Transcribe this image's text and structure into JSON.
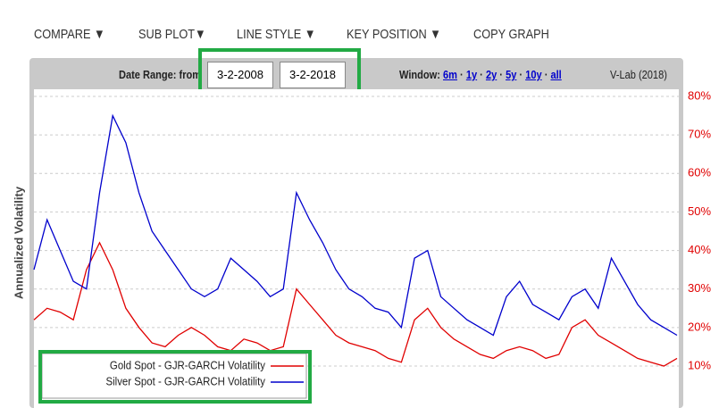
{
  "toolbar": [
    "COMPARE ▼",
    "SUB PLOT▼",
    "LINE STYLE ▼",
    "KEY POSITION ▼",
    "COPY GRAPH"
  ],
  "header": {
    "date_label": "Date Range: from",
    "date_from": "3-2-2008",
    "date_to": "3-2-2018",
    "window_label": "Window:",
    "window_links": [
      "6m",
      "1y",
      "2y",
      "5y",
      "10y",
      "all"
    ],
    "source": "V-Lab (2018)"
  },
  "chart": {
    "type": "line",
    "ylabel": "Annualized Volatility",
    "ylim": [
      1,
      82
    ],
    "yticks": [
      {
        "value": 10,
        "label": "10%"
      },
      {
        "value": 20,
        "label": "20%"
      },
      {
        "value": 30,
        "label": "30%"
      },
      {
        "value": 40,
        "label": "40%"
      },
      {
        "value": 50,
        "label": "50%"
      },
      {
        "value": 60,
        "label": "60%"
      },
      {
        "value": 70,
        "label": "70%"
      },
      {
        "value": 80,
        "label": "80%"
      }
    ],
    "grid": true,
    "series": [
      {
        "name": "Gold Spot - GJR-GARCH Volatility",
        "color": "#e00000",
        "values": [
          22,
          25,
          24,
          22,
          35,
          42,
          35,
          25,
          20,
          16,
          15,
          18,
          20,
          18,
          15,
          14,
          17,
          16,
          14,
          15,
          30,
          26,
          22,
          18,
          16,
          15,
          14,
          12,
          11,
          22,
          25,
          20,
          17,
          15,
          13,
          12,
          14,
          15,
          14,
          12,
          13,
          20,
          22,
          18,
          16,
          14,
          12,
          11,
          10,
          12
        ]
      },
      {
        "name": "Silver Spot - GJR-GARCH Volatility",
        "color": "#0000cc",
        "values": [
          35,
          48,
          40,
          32,
          30,
          55,
          75,
          68,
          55,
          45,
          40,
          35,
          30,
          28,
          30,
          38,
          35,
          32,
          28,
          30,
          55,
          48,
          42,
          35,
          30,
          28,
          25,
          24,
          20,
          38,
          40,
          28,
          25,
          22,
          20,
          18,
          28,
          32,
          26,
          24,
          22,
          28,
          30,
          25,
          38,
          32,
          26,
          22,
          20,
          18
        ]
      }
    ]
  }
}
